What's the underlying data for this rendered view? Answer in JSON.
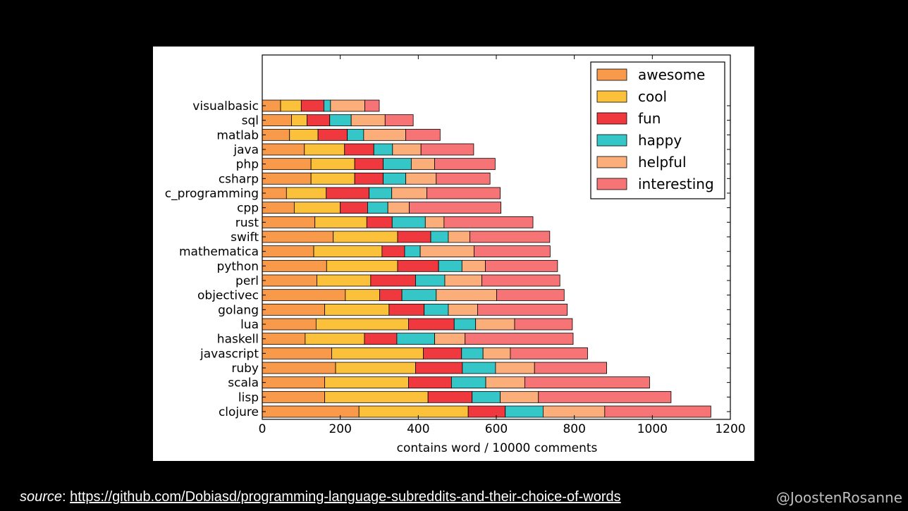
{
  "footer": {
    "source_label": "source",
    "source_sep": ": ",
    "source_url": "https://github.com/Dobiasd/programming-language-subreddits-and-their-choice-of-words",
    "handle": "@JoostenRosanne"
  },
  "chart_data": {
    "type": "bar",
    "orientation": "horizontal",
    "stacked": true,
    "xlabel": "contains word / 10000 comments",
    "ylabel": "",
    "xlim": [
      0,
      1200
    ],
    "xticks": [
      0,
      200,
      400,
      600,
      800,
      1000,
      1200
    ],
    "grid": false,
    "legend_position": "top-right",
    "categories": [
      "visualbasic",
      "sql",
      "matlab",
      "java",
      "php",
      "csharp",
      "c_programming",
      "cpp",
      "rust",
      "swift",
      "mathematica",
      "python",
      "perl",
      "objectivec",
      "golang",
      "lua",
      "haskell",
      "javascript",
      "ruby",
      "scala",
      "lisp",
      "clojure"
    ],
    "series": [
      {
        "name": "awesome",
        "color": "#F99A4B",
        "values": [
          47,
          75,
          70,
          108,
          125,
          125,
          62,
          82,
          135,
          182,
          132,
          165,
          140,
          213,
          160,
          138,
          110,
          178,
          188,
          160,
          160,
          248
        ]
      },
      {
        "name": "cool",
        "color": "#FCC13B",
        "values": [
          53,
          40,
          73,
          103,
          112,
          112,
          102,
          118,
          133,
          165,
          175,
          182,
          138,
          88,
          165,
          237,
          152,
          235,
          205,
          215,
          265,
          280
        ]
      },
      {
        "name": "fun",
        "color": "#F0393E",
        "values": [
          58,
          58,
          75,
          75,
          73,
          73,
          110,
          70,
          65,
          85,
          58,
          105,
          115,
          57,
          90,
          117,
          83,
          98,
          120,
          110,
          113,
          95
        ]
      },
      {
        "name": "happy",
        "color": "#35C6C8",
        "values": [
          17,
          55,
          42,
          48,
          72,
          58,
          58,
          52,
          85,
          45,
          40,
          60,
          75,
          88,
          62,
          55,
          97,
          55,
          85,
          88,
          72,
          97
        ]
      },
      {
        "name": "helpful",
        "color": "#FBAE7A",
        "values": [
          88,
          87,
          108,
          73,
          60,
          78,
          90,
          55,
          48,
          55,
          138,
          60,
          95,
          155,
          75,
          100,
          78,
          70,
          100,
          100,
          98,
          158
        ]
      },
      {
        "name": "interesting",
        "color": "#F67476",
        "values": [
          37,
          72,
          88,
          135,
          155,
          138,
          188,
          235,
          228,
          205,
          195,
          185,
          200,
          173,
          230,
          148,
          277,
          198,
          185,
          320,
          340,
          272
        ]
      }
    ]
  }
}
